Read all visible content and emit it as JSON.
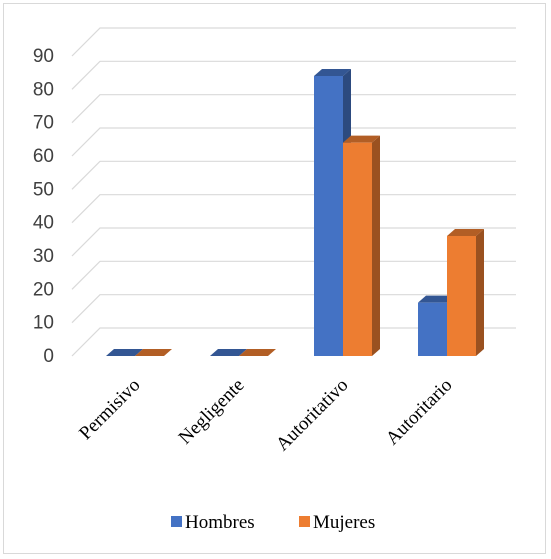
{
  "chart_data": {
    "type": "bar",
    "style": "3d-clustered-column",
    "categories": [
      "Permisivo",
      "Negligente",
      "Autoritativo",
      "Autoritario"
    ],
    "series": [
      {
        "name": "Hombres",
        "color": "#4472C4",
        "values": [
          0,
          0,
          84,
          16
        ]
      },
      {
        "name": "Mujeres",
        "color": "#ED7D31",
        "values": [
          0,
          0,
          64,
          36
        ]
      }
    ],
    "ylim": [
      0,
      90
    ],
    "yticks": [
      "0",
      "10",
      "20",
      "30",
      "40",
      "50",
      "60",
      "70",
      "80",
      "90"
    ],
    "grid": true,
    "legend_position": "bottom"
  }
}
